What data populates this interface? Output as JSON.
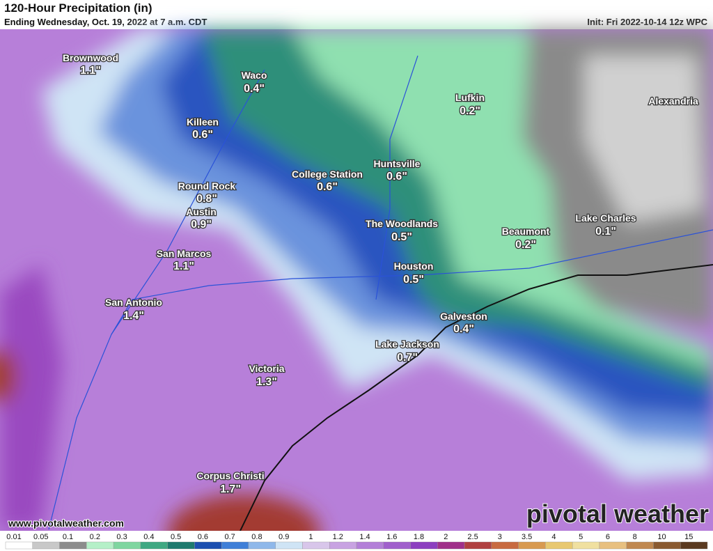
{
  "header": {
    "title": "120-Hour Precipitation (in)",
    "subtitle": "Ending Wednesday, Oct. 19, 2022 at 7 a.m. CDT",
    "init": "Init: Fri 2022-10-14 12z WPC"
  },
  "cities": [
    {
      "name": "Brownwood",
      "value": "1.1\""
    },
    {
      "name": "Waco",
      "value": "0.4\""
    },
    {
      "name": "Killeen",
      "value": "0.6\""
    },
    {
      "name": "College Station",
      "value": "0.6\""
    },
    {
      "name": "Huntsville",
      "value": "0.6\""
    },
    {
      "name": "Round Rock",
      "value": "0.8\""
    },
    {
      "name": "Austin",
      "value": "0.9\""
    },
    {
      "name": "The Woodlands",
      "value": "0.5\""
    },
    {
      "name": "Lufkin",
      "value": "0.2\""
    },
    {
      "name": "Beaumont",
      "value": "0.2\""
    },
    {
      "name": "Lake Charles",
      "value": "0.1\""
    },
    {
      "name": "Alexandria"
    },
    {
      "name": "San Marcos",
      "value": "1.1\""
    },
    {
      "name": "Houston",
      "value": "0.5\""
    },
    {
      "name": "San Antonio",
      "value": "1.4\""
    },
    {
      "name": "Galveston",
      "value": "0.4\""
    },
    {
      "name": "Lake Jackson",
      "value": "0.7\""
    },
    {
      "name": "Victoria",
      "value": "1.3\""
    },
    {
      "name": "Corpus Christi",
      "value": "1.7\""
    }
  ],
  "watermark": "www.pivotalweather.com",
  "logo": "pivotal weather",
  "legend": {
    "labels": [
      "0.01",
      "0.05",
      "0.1",
      "0.2",
      "0.3",
      "0.4",
      "0.5",
      "0.6",
      "0.7",
      "0.8",
      "0.9",
      "1",
      "1.2",
      "1.4",
      "1.6",
      "1.8",
      "2",
      "2.5",
      "3",
      "3.5",
      "4",
      "5",
      "6",
      "8",
      "10",
      "15"
    ],
    "colors": [
      "#ffffff",
      "#c8c8c8",
      "#8c8c8c",
      "#b5f0c8",
      "#7fd6a0",
      "#3fa882",
      "#1e7a6e",
      "#1c4fb0",
      "#3f7fd8",
      "#8fb8ea",
      "#cfe4f5",
      "#d8c6ea",
      "#c8a2e2",
      "#b37fd8",
      "#a05fcc",
      "#8c3fc0",
      "#a0308a",
      "#b04040",
      "#c86a40",
      "#d89a50",
      "#e8c870",
      "#f0e0a0",
      "#e8c080",
      "#c08850",
      "#8a5a30",
      "#5a3a20"
    ]
  }
}
